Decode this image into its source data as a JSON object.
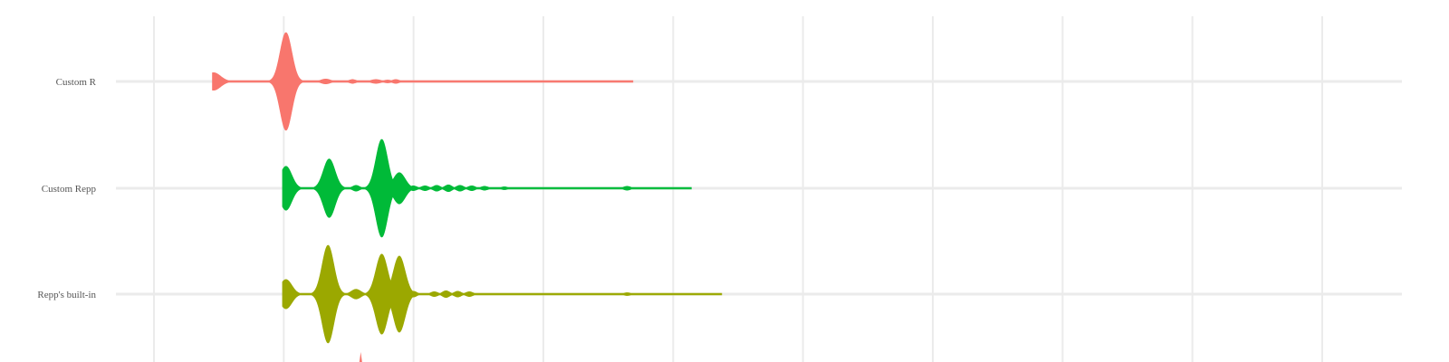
{
  "chart_data": {
    "type": "violin",
    "title": "",
    "xlabel": "",
    "ylabel": "",
    "xlim": [
      0,
      1
    ],
    "grid": true,
    "categories": [
      "Custom R",
      "Custom Repp",
      "Repp's built-in"
    ],
    "series": [
      {
        "category": "Custom R",
        "color": "#F8766D",
        "range": [
          0.05,
          0.41
        ],
        "peaks": [
          {
            "x": 0.051,
            "h": 0.18,
            "w": 0.006
          },
          {
            "x": 0.113,
            "h": 1.0,
            "w": 0.005
          },
          {
            "x": 0.147,
            "h": 0.05,
            "w": 0.004
          },
          {
            "x": 0.17,
            "h": 0.04,
            "w": 0.003
          },
          {
            "x": 0.19,
            "h": 0.04,
            "w": 0.004
          },
          {
            "x": 0.2,
            "h": 0.03,
            "w": 0.003
          },
          {
            "x": 0.207,
            "h": 0.04,
            "w": 0.003
          }
        ]
      },
      {
        "category": "Custom Repp",
        "color": "#00BA38",
        "range": [
          0.11,
          0.46
        ],
        "peaks": [
          {
            "x": 0.113,
            "h": 0.45,
            "w": 0.005
          },
          {
            "x": 0.15,
            "h": 0.6,
            "w": 0.005
          },
          {
            "x": 0.173,
            "h": 0.06,
            "w": 0.003
          },
          {
            "x": 0.195,
            "h": 1.0,
            "w": 0.005
          },
          {
            "x": 0.21,
            "h": 0.32,
            "w": 0.005
          },
          {
            "x": 0.222,
            "h": 0.05,
            "w": 0.003
          },
          {
            "x": 0.232,
            "h": 0.05,
            "w": 0.003
          },
          {
            "x": 0.242,
            "h": 0.06,
            "w": 0.003
          },
          {
            "x": 0.252,
            "h": 0.07,
            "w": 0.003
          },
          {
            "x": 0.262,
            "h": 0.06,
            "w": 0.003
          },
          {
            "x": 0.272,
            "h": 0.05,
            "w": 0.003
          },
          {
            "x": 0.283,
            "h": 0.04,
            "w": 0.003
          },
          {
            "x": 0.3,
            "h": 0.03,
            "w": 0.003
          },
          {
            "x": 0.405,
            "h": 0.04,
            "w": 0.003
          }
        ]
      },
      {
        "category": "Repp's built-in",
        "color": "#9BA800",
        "range": [
          0.11,
          0.486
        ],
        "peaks": [
          {
            "x": 0.113,
            "h": 0.3,
            "w": 0.005
          },
          {
            "x": 0.149,
            "h": 1.0,
            "w": 0.005
          },
          {
            "x": 0.173,
            "h": 0.1,
            "w": 0.004
          },
          {
            "x": 0.195,
            "h": 0.82,
            "w": 0.005
          },
          {
            "x": 0.21,
            "h": 0.78,
            "w": 0.005
          },
          {
            "x": 0.222,
            "h": 0.06,
            "w": 0.003
          },
          {
            "x": 0.24,
            "h": 0.05,
            "w": 0.003
          },
          {
            "x": 0.25,
            "h": 0.07,
            "w": 0.003
          },
          {
            "x": 0.26,
            "h": 0.06,
            "w": 0.003
          },
          {
            "x": 0.27,
            "h": 0.05,
            "w": 0.003
          },
          {
            "x": 0.405,
            "h": 0.03,
            "w": 0.003
          }
        ]
      }
    ],
    "partial_fourth_category_color": "#F8766D"
  }
}
